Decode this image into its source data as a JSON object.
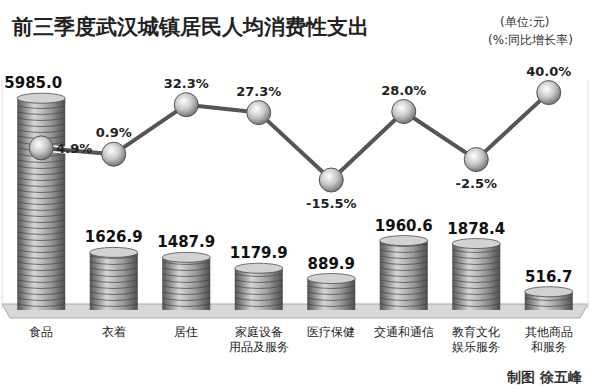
{
  "chart_data": {
    "type": "bar",
    "title": "前三季度武汉城镇居民人均消费性支出",
    "y_label": "(单位:元)",
    "y2_label": "(%:同比增长率)",
    "annotations": [
      "制图 徐五峰"
    ],
    "categories": [
      "食品",
      "衣着",
      "居住",
      "家庭设备用品及服务",
      "医疗保健",
      "交通和通信",
      "教育文化娱乐服务",
      "其他商品和服务"
    ],
    "series": [
      {
        "type": "bar",
        "color": "#9a9a9a",
        "values": [
          5985.0,
          1626.9,
          1487.9,
          1179.9,
          889.9,
          1960.6,
          1878.4,
          516.7
        ],
        "value_labels": [
          "5985.0",
          "1626.9",
          "1487.9",
          "1179.9",
          "889.9",
          "1960.6",
          "1878.4",
          "516.7"
        ]
      },
      {
        "type": "line",
        "axis": "y2",
        "color": "#555555",
        "marker": "circle",
        "values": [
          4.9,
          0.9,
          32.3,
          27.3,
          -15.5,
          28.0,
          -2.5,
          40.0
        ],
        "value_labels": [
          "4.9%",
          "0.9%",
          "32.3%",
          "27.3%",
          "-15.5%",
          "28.0%",
          "-2.5%",
          "40.0%"
        ]
      }
    ],
    "ylim": [
      0,
      6500
    ],
    "y2lim": [
      -98,
      48
    ],
    "grid": false,
    "tick_labels": false,
    "data_labels": true
  }
}
